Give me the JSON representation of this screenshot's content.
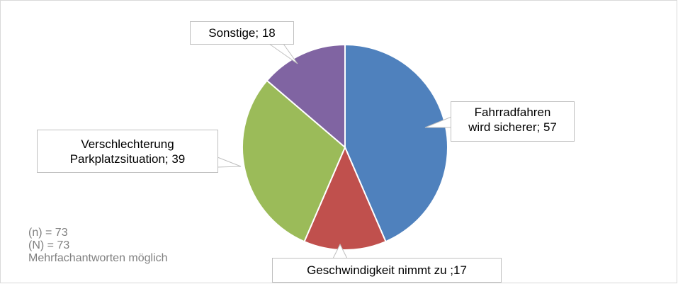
{
  "chart_data": {
    "type": "pie",
    "values": [
      57,
      17,
      39,
      18
    ],
    "value_labels": [
      "Fahrradfahren\nwird sicherer; 57",
      "Geschwindigkeit nimmt zu ;17",
      "Verschlechterung\nParkplatzsituation; 39",
      "Sonstige; 18"
    ],
    "colors": [
      "#4f81bd",
      "#c0504d",
      "#9bbb59",
      "#8064a2"
    ],
    "notes": [
      "(n) = 73",
      "(N) = 73",
      "Mehrfachantworten möglich"
    ]
  }
}
